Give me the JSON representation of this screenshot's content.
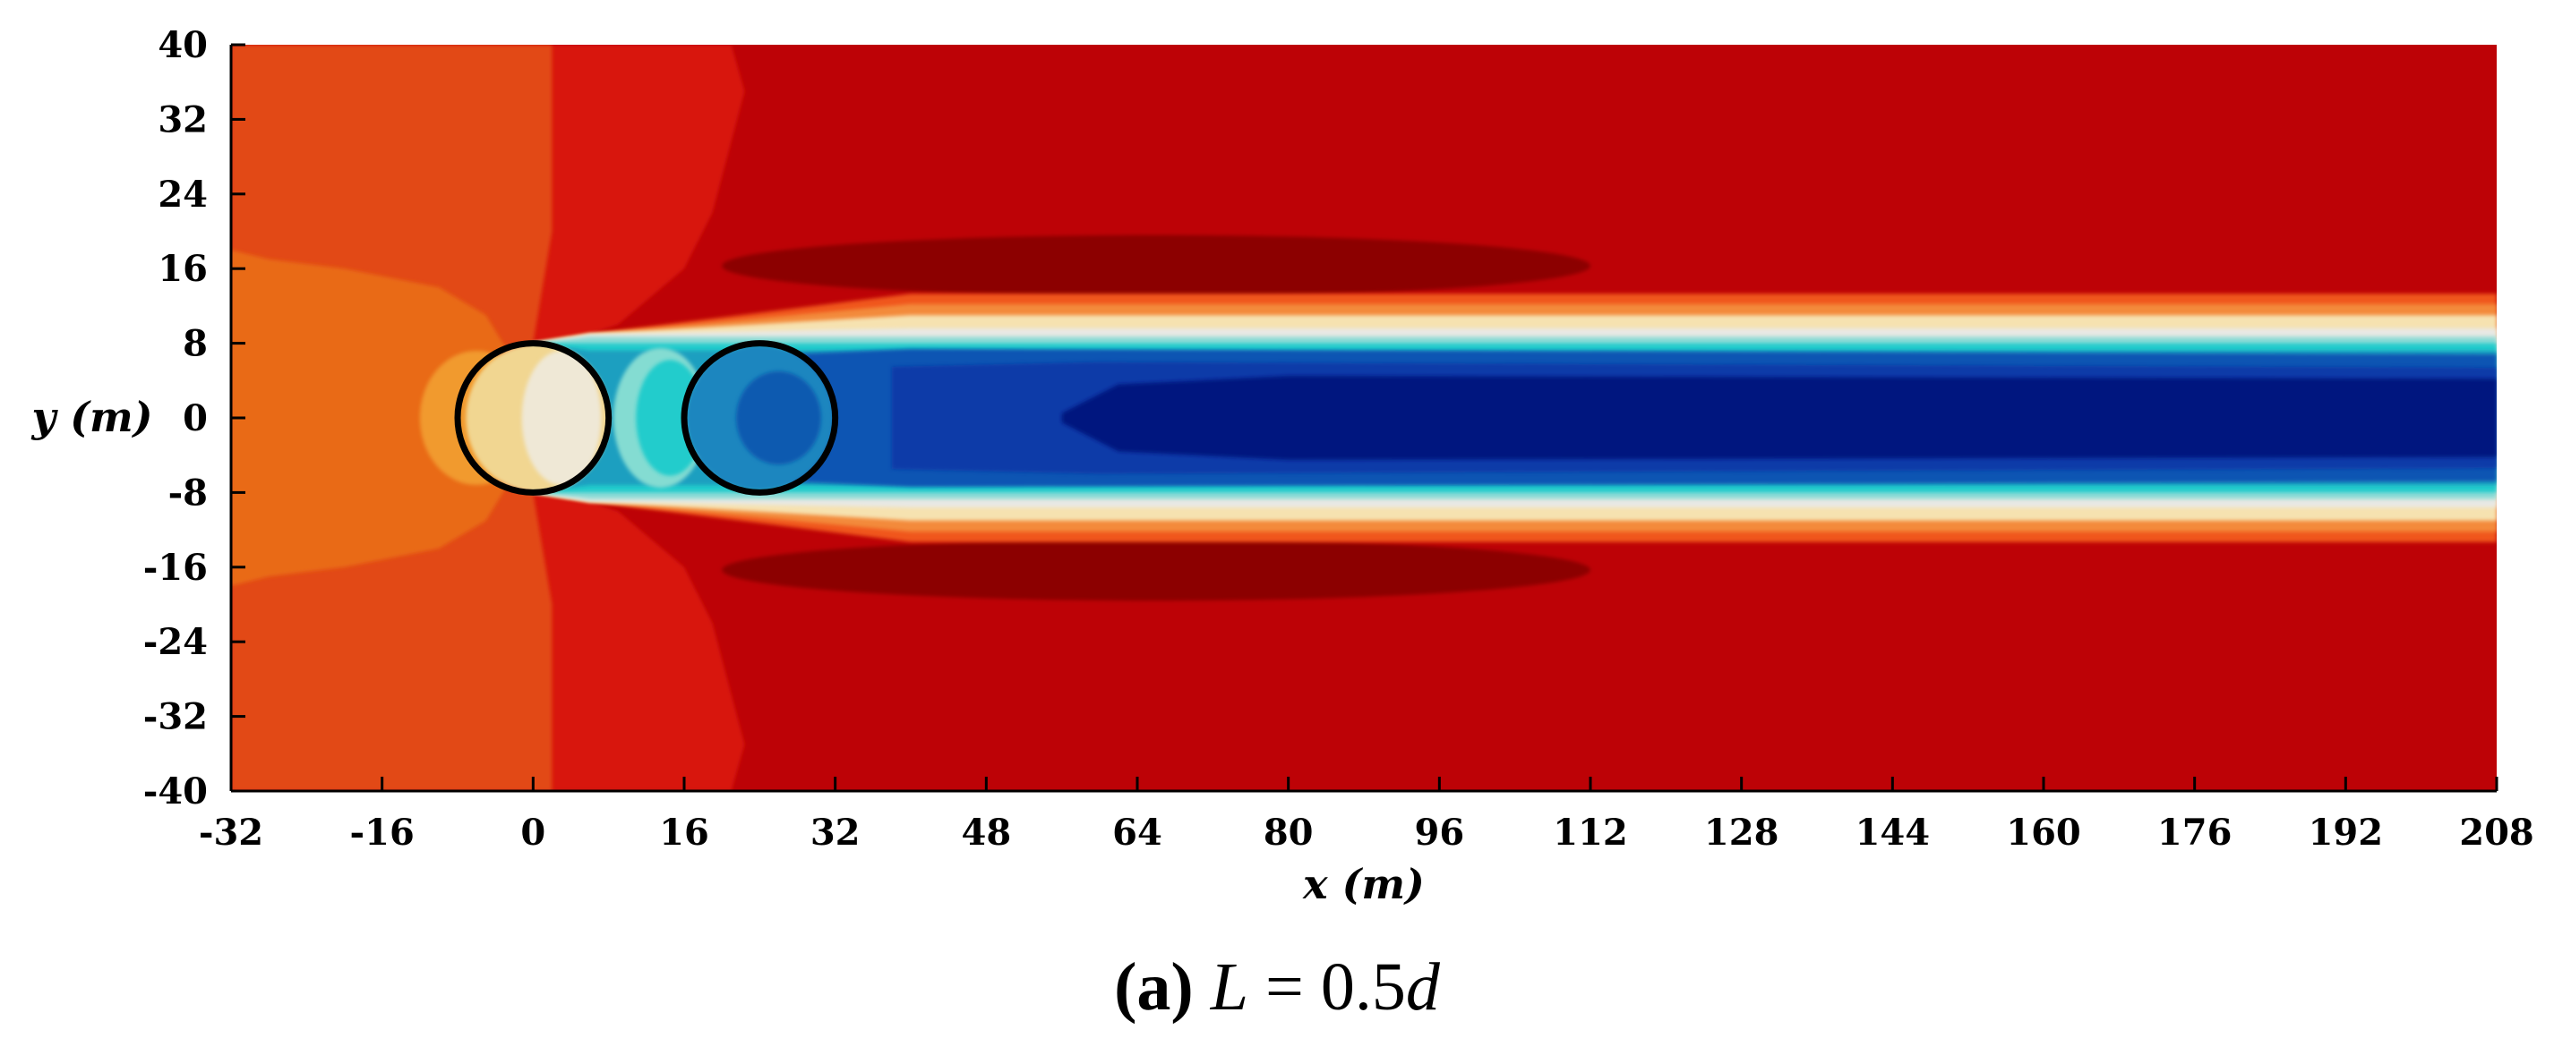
{
  "chart_data": {
    "type": "heatmap",
    "title": "",
    "xlabel": "x (m)",
    "ylabel": "y (m)",
    "xlim": [
      -32,
      208
    ],
    "ylim": [
      -40,
      40
    ],
    "x_ticks": [
      "-32",
      "-16",
      "0",
      "16",
      "32",
      "48",
      "64",
      "80",
      "96",
      "112",
      "128",
      "144",
      "160",
      "176",
      "192",
      "208"
    ],
    "y_ticks": [
      "40",
      "32",
      "24",
      "16",
      "8",
      "0",
      "-8",
      "-16",
      "-24",
      "-32",
      "-40"
    ],
    "grid": false,
    "colormap": {
      "background_far": "#bd0206",
      "deep_red": "#8c0003",
      "mid_red": "#d8160b",
      "orange_red": "#e24a12",
      "orange": "#e96a14",
      "light_orange": "#f19a2f",
      "cream": "#f6e2b0",
      "near_white": "#e8e8e4",
      "cyan": "#21cccc",
      "teal": "#1c9fc0",
      "mid_blue": "#0f55b3",
      "blue": "#0a3aa8",
      "dark_blue": "#00137f"
    },
    "rotors": [
      {
        "x": 0,
        "y": 0,
        "diameter": 16
      },
      {
        "x": 24,
        "y": 0,
        "diameter": 16
      }
    ]
  },
  "caption": {
    "label": "(a)",
    "text_italic": "L",
    "text_mid": " = 0.5",
    "text_italic_end": "d"
  }
}
